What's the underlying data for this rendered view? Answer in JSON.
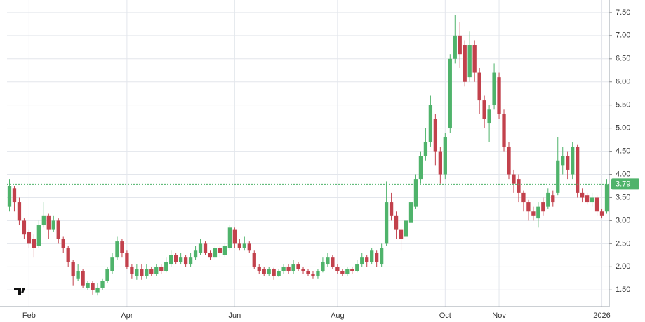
{
  "chart_data": {
    "type": "candlestick",
    "categories": [
      null,
      null,
      null,
      null,
      "Feb",
      null,
      null,
      null,
      null,
      null,
      null,
      null,
      null,
      null,
      null,
      null,
      null,
      null,
      null,
      null,
      null,
      null,
      null,
      null,
      "Apr",
      null,
      null,
      null,
      null,
      null,
      null,
      null,
      null,
      null,
      null,
      null,
      null,
      null,
      null,
      null,
      null,
      null,
      null,
      null,
      null,
      null,
      "Jun",
      null,
      null,
      null,
      null,
      null,
      null,
      null,
      null,
      null,
      null,
      null,
      null,
      null,
      null,
      null,
      null,
      null,
      null,
      null,
      null,
      "Aug",
      null,
      null,
      null,
      null,
      null,
      null,
      null,
      null,
      null,
      null,
      null,
      null,
      null,
      null,
      null,
      null,
      null,
      null,
      null,
      null,
      null,
      "Oct",
      null,
      null,
      null,
      null,
      null,
      null,
      null,
      null,
      null,
      null,
      "Nov",
      null,
      null,
      null,
      null,
      null,
      null,
      null,
      null,
      null,
      null,
      null,
      null,
      null,
      null,
      null,
      null,
      null,
      null,
      null,
      null,
      "2026",
      null
    ],
    "up_color": "#4fb36b",
    "down_color": "#c2414c",
    "series": [
      {
        "open": [
          3.3,
          3.7,
          3.4,
          3.0,
          2.75,
          2.6,
          2.45,
          2.9,
          3.1,
          2.8,
          3.0,
          2.6,
          2.4,
          2.1,
          1.75,
          1.9,
          1.55,
          1.65,
          1.45,
          1.55,
          1.7,
          1.9,
          2.2,
          2.55,
          2.3,
          2.0,
          1.8,
          1.95,
          1.8,
          1.95,
          1.85,
          2.0,
          1.9,
          2.05,
          2.25,
          2.1,
          2.2,
          2.05,
          2.2,
          2.3,
          2.5,
          2.3,
          2.2,
          2.4,
          2.25,
          2.4,
          2.8,
          2.5,
          2.4,
          2.5,
          2.3,
          2.0,
          1.95,
          1.85,
          1.95,
          1.8,
          1.9,
          2.0,
          1.9,
          2.05,
          1.95,
          1.9,
          1.85,
          1.8,
          1.9,
          2.05,
          2.2,
          2.0,
          1.9,
          1.85,
          1.95,
          1.9,
          2.05,
          2.2,
          2.1,
          2.3,
          2.05,
          2.5,
          3.4,
          3.1,
          2.8,
          2.65,
          2.95,
          3.3,
          3.9,
          4.4,
          4.7,
          5.2,
          4.5,
          4.0,
          5.0,
          6.5,
          7.0,
          6.8,
          6.1,
          6.8,
          6.2,
          5.6,
          5.1,
          5.5,
          6.1,
          5.3,
          4.6,
          4.0,
          3.9,
          3.6,
          3.4,
          3.2,
          3.05,
          3.4,
          3.3,
          3.55,
          3.6,
          4.2,
          4.4,
          4.0,
          4.6,
          3.6,
          3.55,
          3.4,
          3.5,
          3.2,
          3.2
        ],
        "high": [
          3.9,
          3.75,
          3.5,
          3.05,
          2.8,
          2.7,
          3.0,
          3.4,
          3.15,
          3.1,
          3.05,
          2.65,
          2.45,
          2.15,
          2.05,
          1.95,
          1.7,
          1.7,
          1.65,
          1.75,
          2.0,
          2.3,
          2.65,
          2.6,
          2.35,
          2.05,
          2.05,
          2.05,
          2.05,
          2.0,
          2.05,
          2.05,
          2.2,
          2.35,
          2.3,
          2.3,
          2.25,
          2.3,
          2.45,
          2.6,
          2.55,
          2.35,
          2.45,
          2.45,
          2.5,
          2.9,
          2.85,
          2.6,
          2.65,
          2.55,
          2.35,
          2.05,
          2.0,
          2.0,
          1.98,
          1.95,
          2.05,
          2.05,
          2.15,
          2.1,
          2.0,
          1.95,
          1.9,
          1.95,
          2.2,
          2.3,
          2.25,
          2.05,
          1.95,
          2.0,
          2.0,
          2.15,
          2.3,
          2.25,
          2.4,
          2.35,
          2.5,
          3.85,
          3.6,
          3.2,
          2.85,
          3.1,
          3.55,
          4.0,
          4.5,
          5.0,
          5.7,
          5.3,
          4.6,
          4.9,
          6.6,
          7.45,
          7.3,
          6.9,
          7.1,
          6.9,
          6.3,
          5.7,
          5.5,
          6.4,
          6.2,
          5.4,
          4.7,
          4.1,
          4.0,
          3.65,
          3.45,
          3.3,
          3.4,
          3.5,
          3.7,
          3.65,
          4.8,
          4.6,
          4.5,
          4.7,
          4.65,
          3.7,
          3.6,
          3.6,
          3.55,
          3.25,
          3.9
        ],
        "low": [
          3.2,
          3.2,
          2.9,
          2.6,
          2.4,
          2.2,
          2.4,
          2.85,
          2.6,
          2.75,
          2.5,
          2.3,
          2.0,
          1.6,
          1.7,
          1.55,
          1.5,
          1.4,
          1.38,
          1.5,
          1.65,
          1.85,
          2.15,
          2.2,
          1.95,
          1.75,
          1.72,
          1.72,
          1.75,
          1.8,
          1.8,
          1.85,
          1.88,
          2.0,
          2.05,
          2.05,
          2.0,
          2.0,
          2.15,
          2.25,
          2.25,
          2.15,
          2.15,
          2.2,
          2.2,
          2.35,
          2.4,
          2.35,
          2.35,
          2.3,
          1.95,
          1.85,
          1.8,
          1.8,
          1.72,
          1.78,
          1.85,
          1.85,
          1.85,
          1.9,
          1.85,
          1.8,
          1.75,
          1.75,
          1.88,
          2.0,
          1.95,
          1.85,
          1.8,
          1.8,
          1.85,
          1.88,
          2.0,
          2.0,
          2.05,
          2.0,
          2.0,
          2.45,
          3.0,
          2.6,
          2.35,
          2.6,
          2.9,
          3.25,
          3.8,
          4.3,
          4.6,
          4.2,
          3.8,
          3.9,
          4.9,
          6.4,
          6.3,
          5.9,
          6.0,
          6.0,
          5.3,
          5.0,
          4.7,
          5.4,
          5.2,
          4.5,
          3.9,
          3.6,
          3.4,
          3.2,
          3.0,
          3.0,
          2.85,
          3.1,
          3.25,
          3.3,
          3.55,
          4.0,
          3.9,
          3.9,
          3.5,
          3.4,
          3.35,
          3.3,
          3.1,
          3.05,
          3.15
        ],
        "close": [
          3.75,
          3.4,
          3.0,
          2.7,
          2.5,
          2.4,
          2.9,
          3.1,
          2.8,
          3.0,
          2.6,
          2.4,
          2.1,
          1.8,
          1.9,
          1.6,
          1.65,
          1.5,
          1.55,
          1.7,
          1.95,
          2.2,
          2.55,
          2.3,
          2.0,
          1.85,
          1.95,
          1.8,
          1.95,
          1.85,
          2.0,
          1.9,
          2.1,
          2.25,
          2.1,
          2.2,
          2.05,
          2.2,
          2.35,
          2.5,
          2.3,
          2.2,
          2.4,
          2.3,
          2.45,
          2.85,
          2.5,
          2.4,
          2.5,
          2.35,
          2.0,
          1.9,
          1.85,
          1.95,
          1.8,
          1.9,
          2.0,
          1.9,
          2.05,
          1.95,
          1.9,
          1.85,
          1.8,
          1.9,
          2.1,
          2.2,
          2.0,
          1.9,
          1.85,
          1.95,
          1.9,
          2.05,
          2.2,
          2.1,
          2.35,
          2.1,
          2.4,
          3.4,
          3.1,
          2.8,
          2.6,
          3.0,
          3.4,
          3.9,
          4.4,
          4.7,
          5.5,
          4.5,
          4.0,
          4.8,
          6.5,
          7.0,
          6.6,
          6.0,
          6.8,
          6.2,
          5.6,
          5.2,
          5.4,
          6.2,
          5.3,
          4.6,
          4.0,
          3.8,
          3.6,
          3.4,
          3.2,
          3.1,
          3.3,
          3.2,
          3.6,
          3.4,
          4.3,
          4.4,
          4.1,
          4.6,
          3.6,
          3.5,
          3.4,
          3.5,
          3.2,
          3.1,
          3.79
        ]
      }
    ],
    "ylim": [
      1.14,
      7.65
    ],
    "yticks": [
      {
        "value": 1.5,
        "label": "1.50"
      },
      {
        "value": 2,
        "label": "2.00"
      },
      {
        "value": 2.5,
        "label": "2.50"
      },
      {
        "value": 3,
        "label": "3.00"
      },
      {
        "value": 3.5,
        "label": "3.50"
      },
      {
        "value": 4,
        "label": "4.00"
      },
      {
        "value": 4.5,
        "label": "4.50"
      },
      {
        "value": 5,
        "label": "5.00"
      },
      {
        "value": 5.5,
        "label": "5.50"
      },
      {
        "value": 6,
        "label": "6.00"
      },
      {
        "value": 6.5,
        "label": "6.50"
      },
      {
        "value": 7,
        "label": "7.00"
      },
      {
        "value": 7.5,
        "label": "7.50"
      }
    ],
    "grid": true,
    "last_price_line": true
  }
}
